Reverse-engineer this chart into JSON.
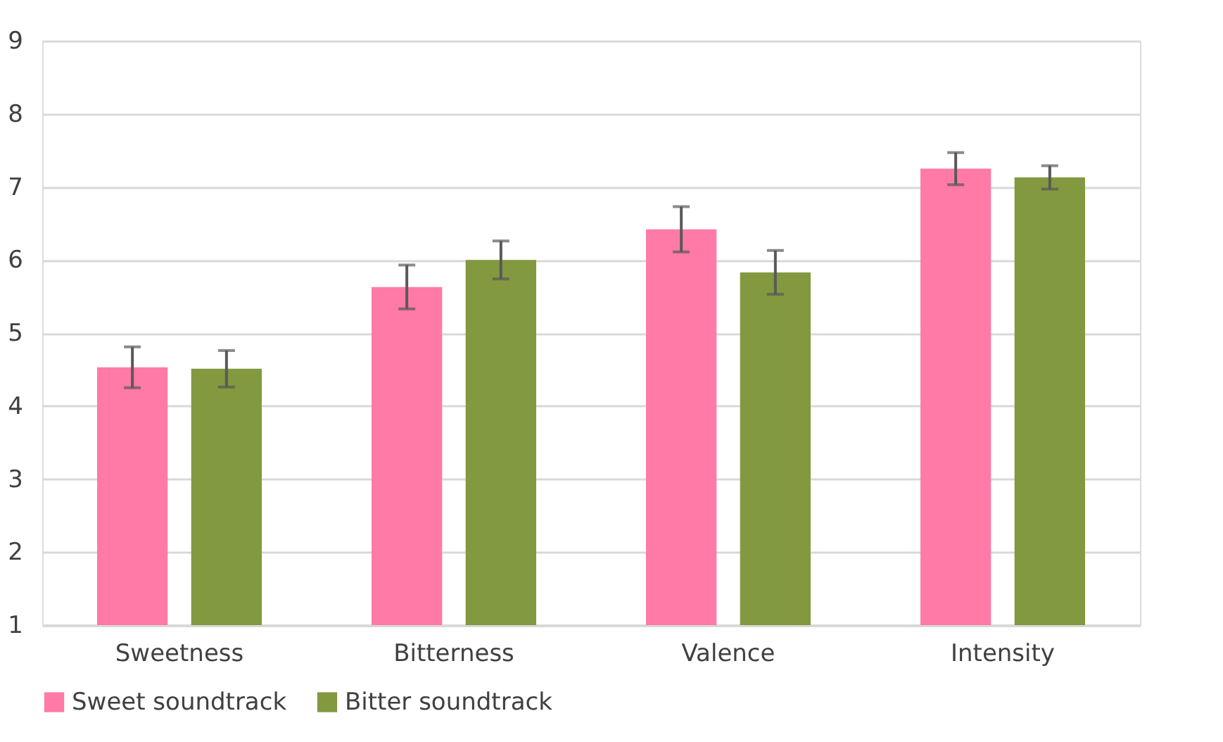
{
  "chart_data": {
    "type": "bar",
    "categories": [
      "Sweetness",
      "Bitterness",
      "Valence",
      "Intensity"
    ],
    "series": [
      {
        "name": "Sweet soundtrack",
        "color": "#ff7aa6",
        "values": [
          4.53,
          5.63,
          6.42,
          7.25
        ],
        "errors": [
          0.28,
          0.3,
          0.31,
          0.22
        ]
      },
      {
        "name": "Bitter soundtrack",
        "color": "#82993f",
        "values": [
          4.51,
          6.0,
          5.83,
          7.13
        ],
        "errors": [
          0.25,
          0.26,
          0.3,
          0.16
        ]
      }
    ],
    "ylim": [
      1,
      9
    ],
    "yticks": [
      1,
      2,
      3,
      4,
      5,
      6,
      7,
      8,
      9
    ],
    "grid": "y",
    "legend": "bottom"
  }
}
